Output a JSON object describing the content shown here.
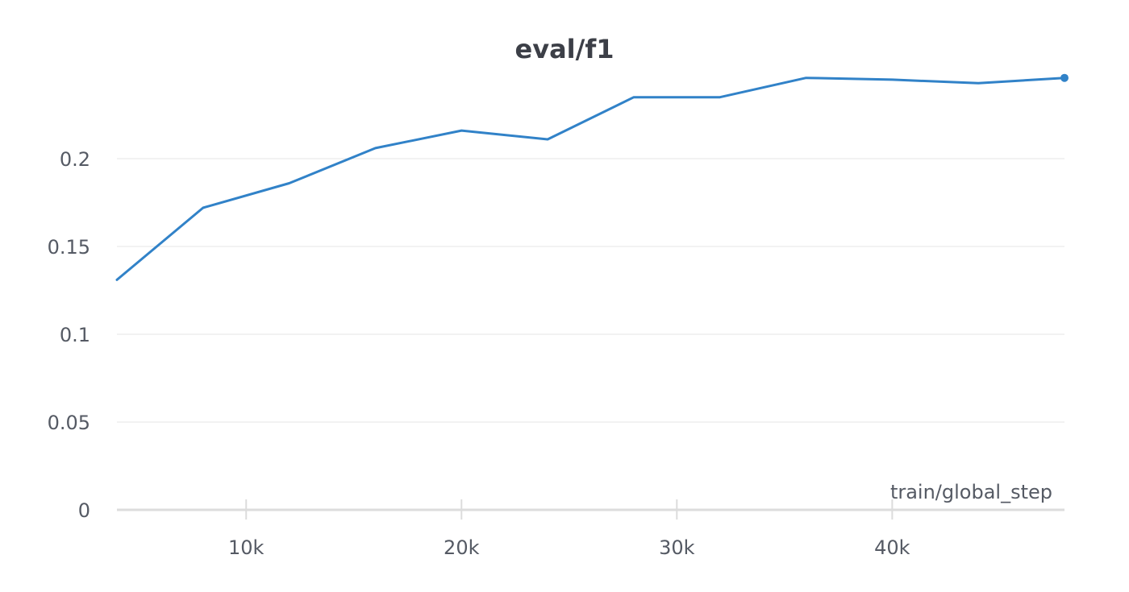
{
  "chart_data": {
    "type": "line",
    "title": "eval/f1",
    "xlabel": "train/global_step",
    "ylabel": "",
    "xlim": [
      4000,
      48000
    ],
    "ylim": [
      0,
      0.25
    ],
    "y_ticks": [
      {
        "value": 0,
        "label": "0"
      },
      {
        "value": 0.05,
        "label": "0.05"
      },
      {
        "value": 0.1,
        "label": "0.1"
      },
      {
        "value": 0.15,
        "label": "0.15"
      },
      {
        "value": 0.2,
        "label": "0.2"
      }
    ],
    "x_ticks": [
      {
        "value": 10000,
        "label": "10k"
      },
      {
        "value": 20000,
        "label": "20k"
      },
      {
        "value": 30000,
        "label": "30k"
      },
      {
        "value": 40000,
        "label": "40k"
      }
    ],
    "grid": true,
    "legend": "none",
    "series": [
      {
        "color": "#3182c8",
        "x": [
          4000,
          8000,
          12000,
          16000,
          20000,
          24000,
          28000,
          32000,
          36000,
          40000,
          44000,
          48000
        ],
        "y": [
          0.131,
          0.172,
          0.186,
          0.206,
          0.216,
          0.211,
          0.235,
          0.235,
          0.246,
          0.245,
          0.243,
          0.246
        ]
      }
    ]
  }
}
